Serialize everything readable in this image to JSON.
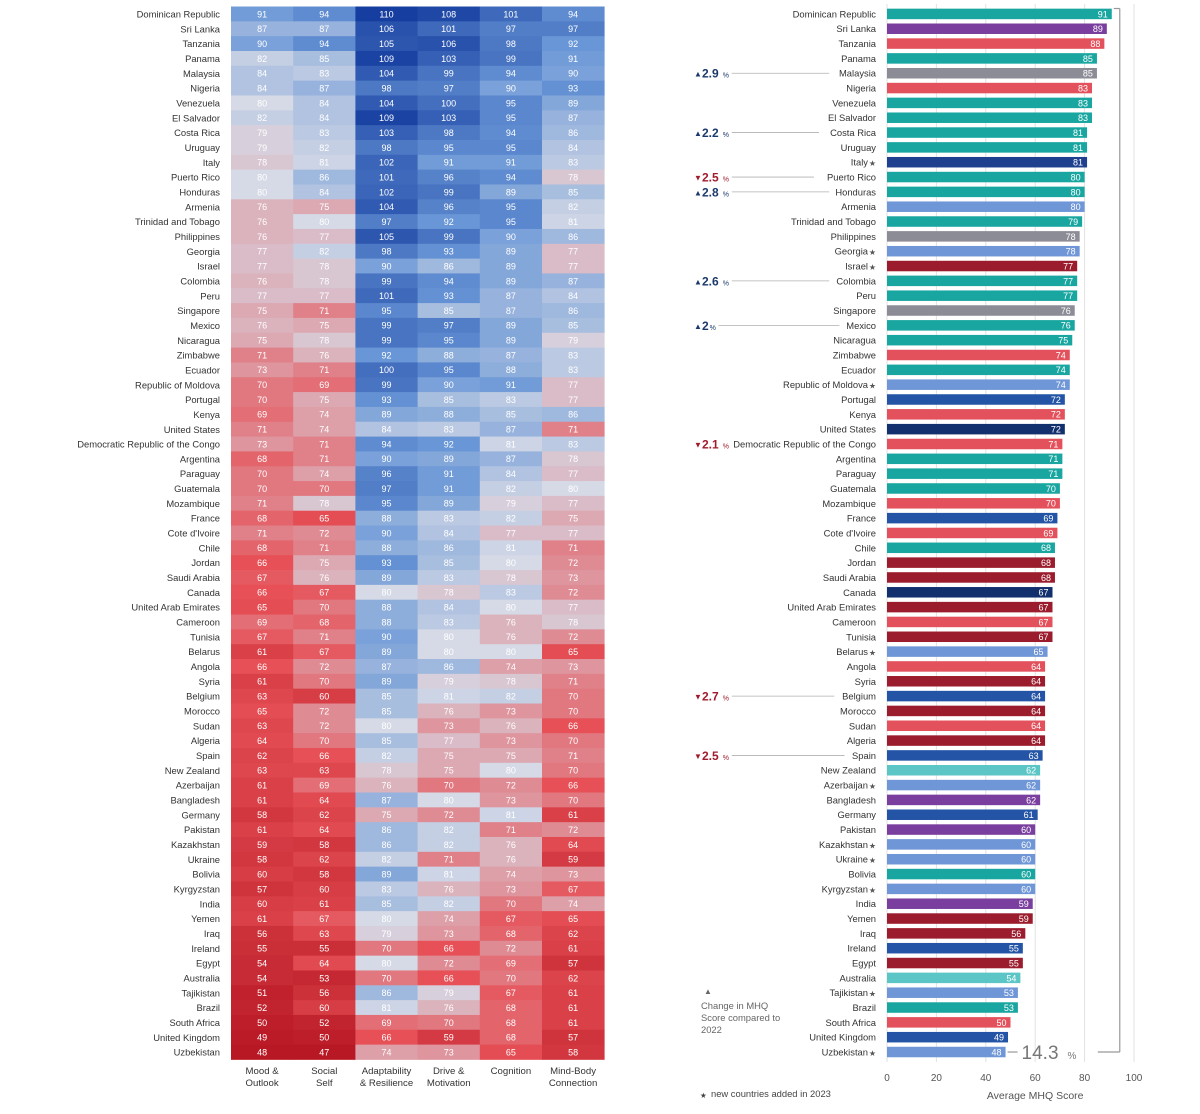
{
  "chart_data": [
    {
      "type": "heatmap",
      "columns": [
        "Mood & Outlook",
        "Social Self",
        "Adaptability & Resilience",
        "Drive & Motivation",
        "Cognition",
        "Mind-Body Connection"
      ],
      "column_label_lines": [
        [
          "Mood &",
          "Outlook"
        ],
        [
          "Social",
          "Self"
        ],
        [
          "Adaptability",
          "& Resilience"
        ],
        [
          "Drive &",
          "Motivation"
        ],
        [
          "Cognition"
        ],
        [
          "Mind-Body",
          "Connection"
        ]
      ],
      "rows": [
        "Dominican Republic",
        "Sri Lanka",
        "Tanzania",
        "Panama",
        "Malaysia",
        "Nigeria",
        "Venezuela",
        "El Salvador",
        "Costa Rica",
        "Uruguay",
        "Italy",
        "Puerto Rico",
        "Honduras",
        "Armenia",
        "Trinidad and Tobago",
        "Philippines",
        "Georgia",
        "Israel",
        "Colombia",
        "Peru",
        "Singapore",
        "Mexico",
        "Nicaragua",
        "Zimbabwe",
        "Ecuador",
        "Republic of Moldova",
        "Portugal",
        "Kenya",
        "United States",
        "Democratic Republic of the Congo",
        "Argentina",
        "Paraguay",
        "Guatemala",
        "Mozambique",
        "France",
        "Cote d'Ivoire",
        "Chile",
        "Jordan",
        "Saudi Arabia",
        "Canada",
        "United Arab Emirates",
        "Cameroon",
        "Tunisia",
        "Belarus",
        "Angola",
        "Syria",
        "Belgium",
        "Morocco",
        "Sudan",
        "Algeria",
        "Spain",
        "New Zealand",
        "Azerbaijan",
        "Bangladesh",
        "Germany",
        "Pakistan",
        "Kazakhstan",
        "Ukraine",
        "Bolivia",
        "Kyrgyzstan",
        "India",
        "Yemen",
        "Iraq",
        "Ireland",
        "Egypt",
        "Australia",
        "Tajikistan",
        "Brazil",
        "South Africa",
        "United Kingdom",
        "Uzbekistan"
      ],
      "values": [
        [
          91,
          94,
          110,
          108,
          101,
          94
        ],
        [
          87,
          87,
          106,
          101,
          97,
          97
        ],
        [
          90,
          94,
          105,
          106,
          98,
          92
        ],
        [
          82,
          85,
          109,
          103,
          99,
          91
        ],
        [
          84,
          83,
          104,
          99,
          94,
          90
        ],
        [
          84,
          87,
          98,
          97,
          90,
          93
        ],
        [
          80,
          84,
          104,
          100,
          95,
          89
        ],
        [
          82,
          84,
          109,
          103,
          95,
          87
        ],
        [
          79,
          83,
          103,
          98,
          94,
          86
        ],
        [
          79,
          82,
          98,
          95,
          95,
          84
        ],
        [
          78,
          81,
          102,
          91,
          91,
          83
        ],
        [
          80,
          86,
          101,
          96,
          94,
          78
        ],
        [
          80,
          84,
          102,
          99,
          89,
          85
        ],
        [
          76,
          75,
          104,
          96,
          95,
          82
        ],
        [
          76,
          80,
          97,
          92,
          95,
          81
        ],
        [
          76,
          77,
          105,
          99,
          90,
          86
        ],
        [
          77,
          82,
          98,
          93,
          89,
          77
        ],
        [
          77,
          78,
          90,
          86,
          89,
          77
        ],
        [
          76,
          78,
          99,
          94,
          89,
          87
        ],
        [
          77,
          77,
          101,
          93,
          87,
          84
        ],
        [
          75,
          71,
          95,
          85,
          87,
          86
        ],
        [
          76,
          75,
          99,
          97,
          89,
          85
        ],
        [
          75,
          78,
          99,
          95,
          89,
          79
        ],
        [
          71,
          76,
          92,
          88,
          87,
          83
        ],
        [
          73,
          71,
          100,
          95,
          88,
          83
        ],
        [
          70,
          69,
          99,
          90,
          91,
          77
        ],
        [
          70,
          75,
          93,
          85,
          83,
          77
        ],
        [
          69,
          74,
          89,
          88,
          85,
          86
        ],
        [
          71,
          74,
          84,
          83,
          87,
          71
        ],
        [
          73,
          71,
          94,
          92,
          81,
          83
        ],
        [
          68,
          71,
          90,
          89,
          87,
          78
        ],
        [
          70,
          74,
          96,
          91,
          84,
          77
        ],
        [
          70,
          70,
          97,
          91,
          82,
          80
        ],
        [
          71,
          78,
          95,
          89,
          79,
          77
        ],
        [
          68,
          65,
          88,
          83,
          82,
          75
        ],
        [
          71,
          72,
          90,
          84,
          77,
          77
        ],
        [
          68,
          71,
          88,
          86,
          81,
          71
        ],
        [
          66,
          75,
          93,
          85,
          80,
          72
        ],
        [
          67,
          76,
          89,
          83,
          78,
          73
        ],
        [
          66,
          67,
          80,
          78,
          83,
          72
        ],
        [
          65,
          70,
          88,
          84,
          80,
          77
        ],
        [
          69,
          68,
          88,
          83,
          76,
          78
        ],
        [
          67,
          71,
          90,
          80,
          76,
          72
        ],
        [
          61,
          67,
          89,
          80,
          80,
          65
        ],
        [
          66,
          72,
          87,
          86,
          74,
          73
        ],
        [
          61,
          70,
          89,
          79,
          78,
          71
        ],
        [
          63,
          60,
          85,
          81,
          82,
          70
        ],
        [
          65,
          72,
          85,
          76,
          73,
          70
        ],
        [
          63,
          72,
          80,
          73,
          76,
          66
        ],
        [
          64,
          70,
          85,
          77,
          73,
          70
        ],
        [
          62,
          66,
          82,
          75,
          75,
          71
        ],
        [
          63,
          63,
          78,
          75,
          80,
          70
        ],
        [
          61,
          69,
          76,
          70,
          72,
          66
        ],
        [
          61,
          64,
          87,
          80,
          73,
          70
        ],
        [
          58,
          62,
          75,
          72,
          81,
          61
        ],
        [
          61,
          64,
          86,
          82,
          71,
          72
        ],
        [
          59,
          58,
          86,
          82,
          76,
          64
        ],
        [
          58,
          62,
          82,
          71,
          76,
          59
        ],
        [
          60,
          58,
          89,
          81,
          74,
          73
        ],
        [
          57,
          60,
          83,
          76,
          73,
          67
        ],
        [
          60,
          61,
          85,
          82,
          70,
          74
        ],
        [
          61,
          67,
          80,
          74,
          67,
          65
        ],
        [
          56,
          63,
          79,
          73,
          68,
          62
        ],
        [
          55,
          55,
          70,
          66,
          72,
          61
        ],
        [
          54,
          64,
          80,
          72,
          69,
          57
        ],
        [
          54,
          53,
          70,
          66,
          70,
          62
        ],
        [
          51,
          56,
          86,
          79,
          67,
          61
        ],
        [
          52,
          60,
          81,
          76,
          68,
          61
        ],
        [
          50,
          52,
          69,
          70,
          68,
          61
        ],
        [
          49,
          50,
          66,
          59,
          68,
          57
        ],
        [
          48,
          47,
          74,
          73,
          65,
          58
        ]
      ]
    },
    {
      "type": "bar",
      "orientation": "horizontal",
      "categories": [
        "Dominican Republic",
        "Sri Lanka",
        "Tanzania",
        "Panama",
        "Malaysia",
        "Nigeria",
        "Venezuela",
        "El Salvador",
        "Costa Rica",
        "Uruguay",
        "Italy",
        "Puerto Rico",
        "Honduras",
        "Armenia",
        "Trinidad and Tobago",
        "Philippines",
        "Georgia",
        "Israel",
        "Colombia",
        "Peru",
        "Singapore",
        "Mexico",
        "Nicaragua",
        "Zimbabwe",
        "Ecuador",
        "Republic of Moldova",
        "Portugal",
        "Kenya",
        "United States",
        "Democratic Republic of the Congo",
        "Argentina",
        "Paraguay",
        "Guatemala",
        "Mozambique",
        "France",
        "Cote d'Ivoire",
        "Chile",
        "Jordan",
        "Saudi Arabia",
        "Canada",
        "United Arab Emirates",
        "Cameroon",
        "Tunisia",
        "Belarus",
        "Angola",
        "Syria",
        "Belgium",
        "Morocco",
        "Sudan",
        "Algeria",
        "Spain",
        "New Zealand",
        "Azerbaijan",
        "Bangladesh",
        "Germany",
        "Pakistan",
        "Kazakhstan",
        "Ukraine",
        "Bolivia",
        "Kyrgyzstan",
        "India",
        "Yemen",
        "Iraq",
        "Ireland",
        "Egypt",
        "Australia",
        "Tajikistan",
        "Brazil",
        "South Africa",
        "United Kingdom",
        "Uzbekistan"
      ],
      "values": [
        91,
        89,
        88,
        85,
        85,
        83,
        83,
        83,
        81,
        81,
        81,
        80,
        80,
        80,
        79,
        78,
        78,
        77,
        77,
        77,
        76,
        76,
        75,
        74,
        74,
        74,
        72,
        72,
        72,
        71,
        71,
        71,
        70,
        70,
        69,
        69,
        68,
        68,
        68,
        67,
        67,
        67,
        67,
        65,
        64,
        64,
        64,
        64,
        64,
        64,
        63,
        62,
        62,
        62,
        61,
        60,
        60,
        60,
        60,
        60,
        59,
        59,
        56,
        55,
        55,
        54,
        53,
        53,
        50,
        49,
        48
      ],
      "colors": [
        "#19a6a0",
        "#7a3f9e",
        "#e3525c",
        "#19a6a0",
        "#8c8c96",
        "#e3525c",
        "#19a6a0",
        "#19a6a0",
        "#19a6a0",
        "#19a6a0",
        "#1f3f8f",
        "#19a6a0",
        "#19a6a0",
        "#6f96d6",
        "#19a6a0",
        "#8c8c96",
        "#6f96d6",
        "#9b1c2c",
        "#19a6a0",
        "#19a6a0",
        "#8c8c96",
        "#19a6a0",
        "#19a6a0",
        "#e3525c",
        "#19a6a0",
        "#6f96d6",
        "#2454a6",
        "#e3525c",
        "#122f6e",
        "#e3525c",
        "#19a6a0",
        "#19a6a0",
        "#19a6a0",
        "#e3525c",
        "#2454a6",
        "#e3525c",
        "#19a6a0",
        "#9b1c2c",
        "#9b1c2c",
        "#122f6e",
        "#9b1c2c",
        "#e3525c",
        "#9b1c2c",
        "#6f96d6",
        "#e3525c",
        "#9b1c2c",
        "#2454a6",
        "#9b1c2c",
        "#e3525c",
        "#9b1c2c",
        "#2454a6",
        "#5cc6c6",
        "#6f96d6",
        "#7a3f9e",
        "#2454a6",
        "#7a3f9e",
        "#6f96d6",
        "#6f96d6",
        "#19a6a0",
        "#6f96d6",
        "#7a3f9e",
        "#9b1c2c",
        "#9b1c2c",
        "#2454a6",
        "#9b1c2c",
        "#5cc6c6",
        "#6f96d6",
        "#19a6a0",
        "#e3525c",
        "#2454a6",
        "#6f96d6"
      ],
      "new_countries": [
        "Italy",
        "Georgia",
        "Israel",
        "Republic of Moldova",
        "Belarus",
        "Azerbaijan",
        "Kazakhstan",
        "Ukraine",
        "Kyrgyzstan",
        "Tajikistan",
        "Uzbekistan"
      ],
      "changes": [
        {
          "country": "Malaysia",
          "direction": "up",
          "value": "2.9"
        },
        {
          "country": "Costa Rica",
          "direction": "up",
          "value": "2.2"
        },
        {
          "country": "Puerto Rico",
          "direction": "down",
          "value": "2.5"
        },
        {
          "country": "Honduras",
          "direction": "up",
          "value": "2.8"
        },
        {
          "country": "Colombia",
          "direction": "up",
          "value": "2.6"
        },
        {
          "country": "Mexico",
          "direction": "up",
          "value": "2"
        },
        {
          "country": "Democratic Republic of the Congo",
          "direction": "down",
          "value": "2.1"
        },
        {
          "country": "Belgium",
          "direction": "down",
          "value": "2.7"
        },
        {
          "country": "Spain",
          "direction": "down",
          "value": "2.5"
        }
      ],
      "range_annotation": "14.3",
      "xlabel": "Average MHQ Score",
      "xticks": [
        0,
        20,
        40,
        60,
        80,
        100
      ],
      "xlim": [
        0,
        100
      ],
      "legend_change": "Change in MHQ Score compared to 2022",
      "legend_new": "new countries added in 2023"
    }
  ],
  "colors": {
    "up_arrow": "#1b3a6b",
    "down_arrow": "#a01c2c"
  }
}
